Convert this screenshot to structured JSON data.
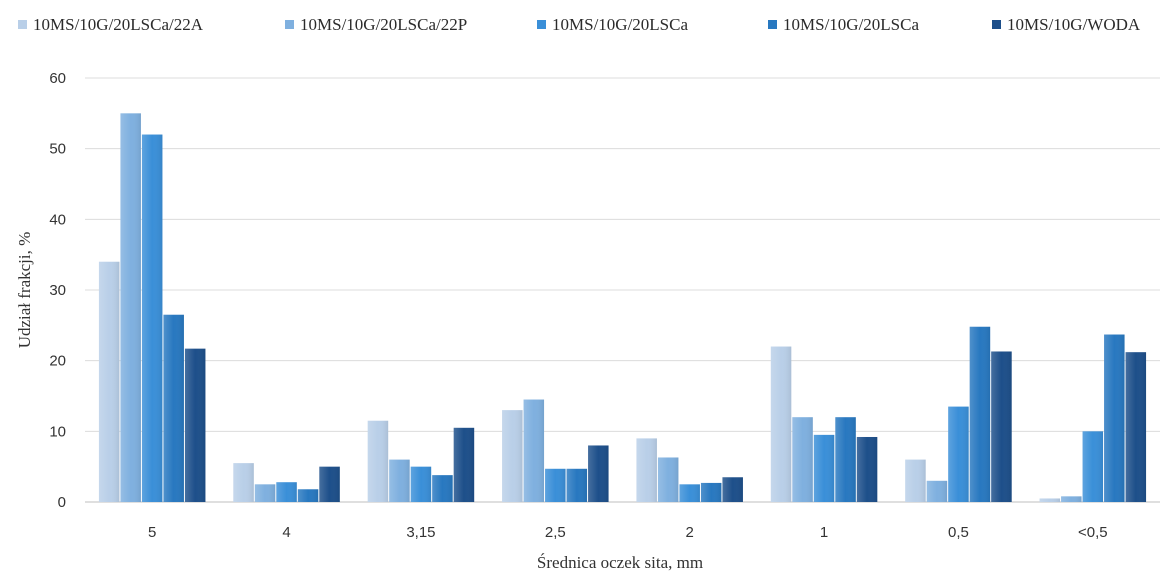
{
  "chart_data": {
    "type": "bar",
    "title": "",
    "xlabel": "Średnica oczek sita, mm",
    "ylabel": "Udział frakcji, %",
    "ylim": [
      0,
      60
    ],
    "yticks": [
      0,
      10,
      20,
      30,
      40,
      50,
      60
    ],
    "grid": true,
    "legend_position": "top",
    "categories": [
      "5",
      "4",
      "3,15",
      "2,5",
      "2",
      "1",
      "0,5",
      "<0,5"
    ],
    "series": [
      {
        "name": "10MS/10G/20LSCa/22A",
        "color": "#b9cfe8",
        "values": [
          34.0,
          5.5,
          11.5,
          13.0,
          9.0,
          22.0,
          6.0,
          0.5
        ]
      },
      {
        "name": "10MS/10G/20LSCa/22P",
        "color": "#7fb0df",
        "values": [
          55.0,
          2.5,
          6.0,
          14.5,
          6.3,
          12.0,
          3.0,
          0.8
        ]
      },
      {
        "name": "10MS/10G/20LSCa",
        "color": "#3a8fd8",
        "values": [
          52.0,
          2.8,
          5.0,
          4.7,
          2.5,
          9.5,
          13.5,
          10.0
        ]
      },
      {
        "name": "10MS/10G/20LSCa",
        "color": "#2878c0",
        "values": [
          26.5,
          1.8,
          3.8,
          4.7,
          2.7,
          12.0,
          24.8,
          23.7
        ]
      },
      {
        "name": "10MS/10G/WODA",
        "color": "#1d4f8a",
        "values": [
          21.7,
          5.0,
          10.5,
          8.0,
          3.5,
          9.2,
          21.3,
          21.2
        ]
      }
    ]
  }
}
